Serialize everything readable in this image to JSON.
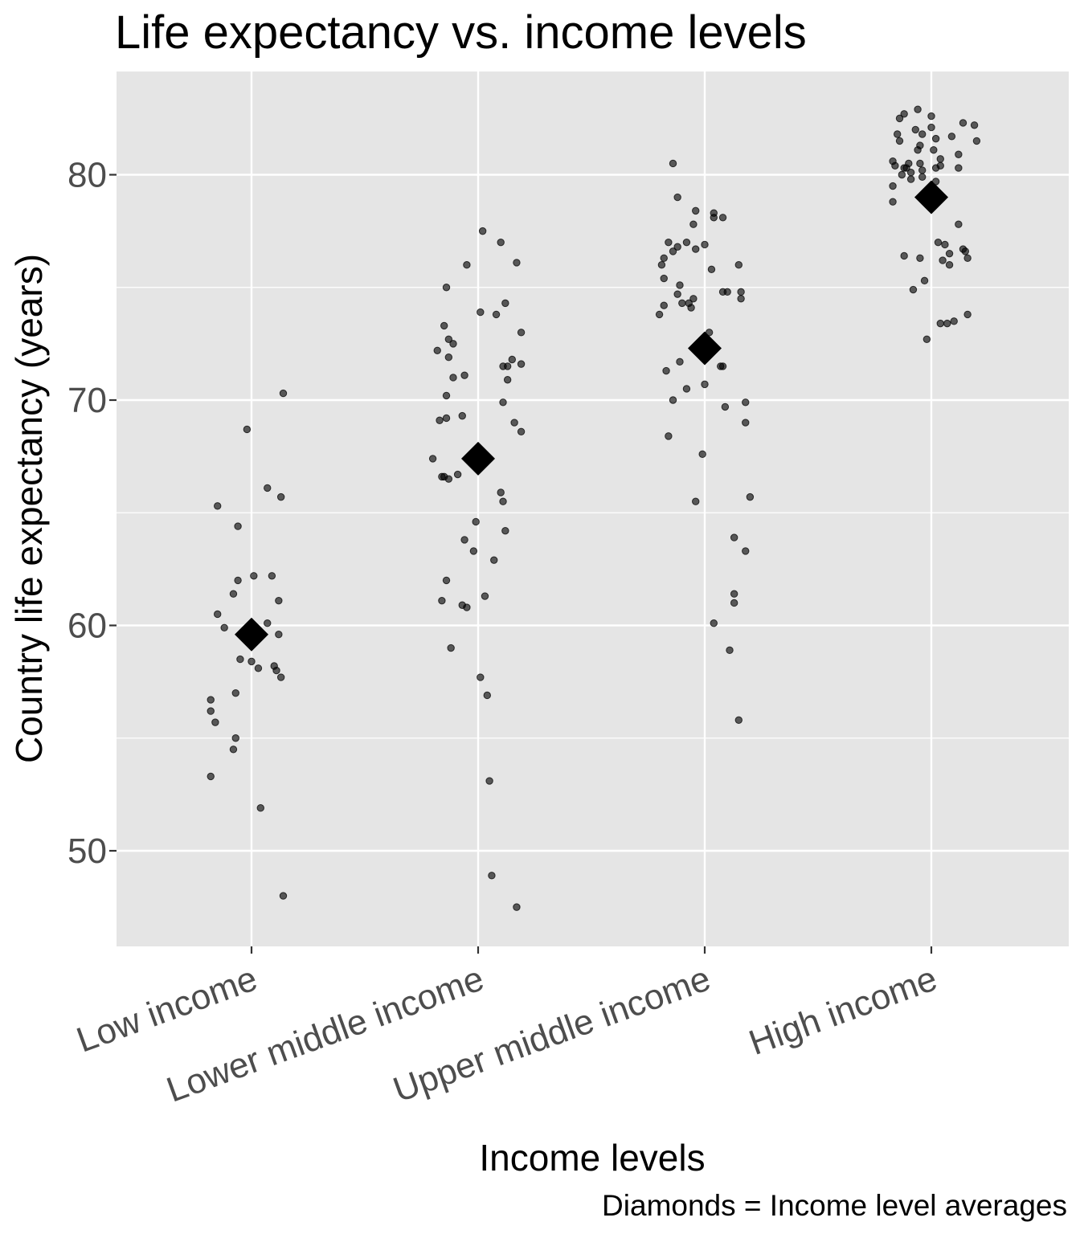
{
  "chart_data": {
    "type": "scatter",
    "title": "Life expectancy vs. income levels",
    "xlabel": "Income levels",
    "ylabel": "Country life expectancy (years)",
    "caption": "Diamonds = Income level averages",
    "categories": [
      "Low income",
      "Lower middle income",
      "Upper middle income",
      "High income"
    ],
    "yticks": [
      50,
      60,
      70,
      80
    ],
    "ylim": [
      45.8,
      84.6
    ],
    "grid": true,
    "background": "#e5e5e5",
    "grid_major_color": "#ffffff",
    "point_color": "#000000",
    "averages": [
      59.6,
      67.4,
      72.3,
      79.0
    ],
    "points": [
      {
        "category": "Low income",
        "jitter": -0.18,
        "y": 53.3
      },
      {
        "category": "Low income",
        "jitter": -0.18,
        "y": 56.7
      },
      {
        "category": "Low income",
        "jitter": -0.18,
        "y": 56.2
      },
      {
        "category": "Low income",
        "jitter": -0.16,
        "y": 55.7
      },
      {
        "category": "Low income",
        "jitter": -0.15,
        "y": 65.3
      },
      {
        "category": "Low income",
        "jitter": -0.15,
        "y": 60.5
      },
      {
        "category": "Low income",
        "jitter": -0.12,
        "y": 59.9
      },
      {
        "category": "Low income",
        "jitter": -0.08,
        "y": 61.4
      },
      {
        "category": "Low income",
        "jitter": -0.07,
        "y": 57.0
      },
      {
        "category": "Low income",
        "jitter": -0.07,
        "y": 55.0
      },
      {
        "category": "Low income",
        "jitter": -0.08,
        "y": 54.5
      },
      {
        "category": "Low income",
        "jitter": -0.06,
        "y": 64.4
      },
      {
        "category": "Low income",
        "jitter": -0.06,
        "y": 62.0
      },
      {
        "category": "Low income",
        "jitter": -0.05,
        "y": 58.5
      },
      {
        "category": "Low income",
        "jitter": -0.02,
        "y": 68.7
      },
      {
        "category": "Low income",
        "jitter": 0.01,
        "y": 62.2
      },
      {
        "category": "Low income",
        "jitter": 0.0,
        "y": 58.4
      },
      {
        "category": "Low income",
        "jitter": 0.03,
        "y": 58.1
      },
      {
        "category": "Low income",
        "jitter": 0.04,
        "y": 51.9
      },
      {
        "category": "Low income",
        "jitter": 0.07,
        "y": 66.1
      },
      {
        "category": "Low income",
        "jitter": 0.07,
        "y": 60.1
      },
      {
        "category": "Low income",
        "jitter": 0.09,
        "y": 62.2
      },
      {
        "category": "Low income",
        "jitter": 0.1,
        "y": 58.2
      },
      {
        "category": "Low income",
        "jitter": 0.11,
        "y": 58.0
      },
      {
        "category": "Low income",
        "jitter": 0.12,
        "y": 61.1
      },
      {
        "category": "Low income",
        "jitter": 0.12,
        "y": 59.6
      },
      {
        "category": "Low income",
        "jitter": 0.13,
        "y": 57.7
      },
      {
        "category": "Low income",
        "jitter": 0.13,
        "y": 65.7
      },
      {
        "category": "Low income",
        "jitter": 0.14,
        "y": 70.3
      },
      {
        "category": "Low income",
        "jitter": 0.14,
        "y": 48.0
      },
      {
        "category": "Lower middle income",
        "jitter": -0.2,
        "y": 67.4
      },
      {
        "category": "Lower middle income",
        "jitter": -0.18,
        "y": 72.2
      },
      {
        "category": "Lower middle income",
        "jitter": -0.17,
        "y": 69.1
      },
      {
        "category": "Lower middle income",
        "jitter": -0.16,
        "y": 66.6
      },
      {
        "category": "Lower middle income",
        "jitter": -0.16,
        "y": 61.1
      },
      {
        "category": "Lower middle income",
        "jitter": -0.15,
        "y": 73.3
      },
      {
        "category": "Lower middle income",
        "jitter": -0.15,
        "y": 66.6
      },
      {
        "category": "Lower middle income",
        "jitter": -0.14,
        "y": 75.0
      },
      {
        "category": "Lower middle income",
        "jitter": -0.14,
        "y": 70.2
      },
      {
        "category": "Lower middle income",
        "jitter": -0.14,
        "y": 69.2
      },
      {
        "category": "Lower middle income",
        "jitter": -0.14,
        "y": 62.0
      },
      {
        "category": "Lower middle income",
        "jitter": -0.13,
        "y": 72.7
      },
      {
        "category": "Lower middle income",
        "jitter": -0.13,
        "y": 71.9
      },
      {
        "category": "Lower middle income",
        "jitter": -0.13,
        "y": 66.5
      },
      {
        "category": "Lower middle income",
        "jitter": -0.12,
        "y": 59.0
      },
      {
        "category": "Lower middle income",
        "jitter": -0.11,
        "y": 72.5
      },
      {
        "category": "Lower middle income",
        "jitter": -0.11,
        "y": 71.0
      },
      {
        "category": "Lower middle income",
        "jitter": -0.09,
        "y": 66.7
      },
      {
        "category": "Lower middle income",
        "jitter": -0.07,
        "y": 69.3
      },
      {
        "category": "Lower middle income",
        "jitter": -0.07,
        "y": 60.9
      },
      {
        "category": "Lower middle income",
        "jitter": -0.06,
        "y": 63.8
      },
      {
        "category": "Lower middle income",
        "jitter": -0.06,
        "y": 71.1
      },
      {
        "category": "Lower middle income",
        "jitter": -0.05,
        "y": 76.0
      },
      {
        "category": "Lower middle income",
        "jitter": -0.05,
        "y": 60.8
      },
      {
        "category": "Lower middle income",
        "jitter": -0.02,
        "y": 63.3
      },
      {
        "category": "Lower middle income",
        "jitter": -0.01,
        "y": 64.6
      },
      {
        "category": "Lower middle income",
        "jitter": 0.01,
        "y": 57.7
      },
      {
        "category": "Lower middle income",
        "jitter": 0.01,
        "y": 73.9
      },
      {
        "category": "Lower middle income",
        "jitter": 0.02,
        "y": 77.5
      },
      {
        "category": "Lower middle income",
        "jitter": 0.03,
        "y": 61.3
      },
      {
        "category": "Lower middle income",
        "jitter": 0.04,
        "y": 56.9
      },
      {
        "category": "Lower middle income",
        "jitter": 0.05,
        "y": 53.1
      },
      {
        "category": "Lower middle income",
        "jitter": 0.06,
        "y": 48.9
      },
      {
        "category": "Lower middle income",
        "jitter": 0.07,
        "y": 62.9
      },
      {
        "category": "Lower middle income",
        "jitter": 0.08,
        "y": 73.8
      },
      {
        "category": "Lower middle income",
        "jitter": 0.1,
        "y": 77.0
      },
      {
        "category": "Lower middle income",
        "jitter": 0.1,
        "y": 65.9
      },
      {
        "category": "Lower middle income",
        "jitter": 0.11,
        "y": 71.5
      },
      {
        "category": "Lower middle income",
        "jitter": 0.11,
        "y": 69.9
      },
      {
        "category": "Lower middle income",
        "jitter": 0.11,
        "y": 65.5
      },
      {
        "category": "Lower middle income",
        "jitter": 0.12,
        "y": 74.3
      },
      {
        "category": "Lower middle income",
        "jitter": 0.12,
        "y": 64.2
      },
      {
        "category": "Lower middle income",
        "jitter": 0.13,
        "y": 71.5
      },
      {
        "category": "Lower middle income",
        "jitter": 0.13,
        "y": 70.9
      },
      {
        "category": "Lower middle income",
        "jitter": 0.15,
        "y": 71.8
      },
      {
        "category": "Lower middle income",
        "jitter": 0.16,
        "y": 69.0
      },
      {
        "category": "Lower middle income",
        "jitter": 0.17,
        "y": 76.1
      },
      {
        "category": "Lower middle income",
        "jitter": 0.17,
        "y": 47.5
      },
      {
        "category": "Lower middle income",
        "jitter": 0.19,
        "y": 73.0
      },
      {
        "category": "Lower middle income",
        "jitter": 0.19,
        "y": 71.6
      },
      {
        "category": "Lower middle income",
        "jitter": 0.19,
        "y": 68.6
      },
      {
        "category": "Upper middle income",
        "jitter": -0.2,
        "y": 73.8
      },
      {
        "category": "Upper middle income",
        "jitter": -0.19,
        "y": 76.0
      },
      {
        "category": "Upper middle income",
        "jitter": -0.18,
        "y": 76.3
      },
      {
        "category": "Upper middle income",
        "jitter": -0.18,
        "y": 75.4
      },
      {
        "category": "Upper middle income",
        "jitter": -0.18,
        "y": 74.2
      },
      {
        "category": "Upper middle income",
        "jitter": -0.17,
        "y": 71.3
      },
      {
        "category": "Upper middle income",
        "jitter": -0.16,
        "y": 68.4
      },
      {
        "category": "Upper middle income",
        "jitter": -0.16,
        "y": 77.0
      },
      {
        "category": "Upper middle income",
        "jitter": -0.14,
        "y": 80.5
      },
      {
        "category": "Upper middle income",
        "jitter": -0.14,
        "y": 76.6
      },
      {
        "category": "Upper middle income",
        "jitter": -0.14,
        "y": 70.0
      },
      {
        "category": "Upper middle income",
        "jitter": -0.12,
        "y": 79.0
      },
      {
        "category": "Upper middle income",
        "jitter": -0.12,
        "y": 76.8
      },
      {
        "category": "Upper middle income",
        "jitter": -0.12,
        "y": 74.7
      },
      {
        "category": "Upper middle income",
        "jitter": -0.11,
        "y": 75.1
      },
      {
        "category": "Upper middle income",
        "jitter": -0.11,
        "y": 71.7
      },
      {
        "category": "Upper middle income",
        "jitter": -0.1,
        "y": 74.3
      },
      {
        "category": "Upper middle income",
        "jitter": -0.08,
        "y": 77.0
      },
      {
        "category": "Upper middle income",
        "jitter": -0.08,
        "y": 70.5
      },
      {
        "category": "Upper middle income",
        "jitter": -0.07,
        "y": 74.3
      },
      {
        "category": "Upper middle income",
        "jitter": -0.06,
        "y": 74.1
      },
      {
        "category": "Upper middle income",
        "jitter": -0.05,
        "y": 77.8
      },
      {
        "category": "Upper middle income",
        "jitter": -0.05,
        "y": 74.5
      },
      {
        "category": "Upper middle income",
        "jitter": -0.04,
        "y": 78.4
      },
      {
        "category": "Upper middle income",
        "jitter": -0.04,
        "y": 76.7
      },
      {
        "category": "Upper middle income",
        "jitter": -0.04,
        "y": 65.5
      },
      {
        "category": "Upper middle income",
        "jitter": -0.01,
        "y": 67.6
      },
      {
        "category": "Upper middle income",
        "jitter": 0.0,
        "y": 76.9
      },
      {
        "category": "Upper middle income",
        "jitter": 0.0,
        "y": 70.7
      },
      {
        "category": "Upper middle income",
        "jitter": 0.02,
        "y": 73.0
      },
      {
        "category": "Upper middle income",
        "jitter": 0.03,
        "y": 75.8
      },
      {
        "category": "Upper middle income",
        "jitter": 0.04,
        "y": 78.3
      },
      {
        "category": "Upper middle income",
        "jitter": 0.04,
        "y": 78.1
      },
      {
        "category": "Upper middle income",
        "jitter": 0.04,
        "y": 60.1
      },
      {
        "category": "Upper middle income",
        "jitter": 0.07,
        "y": 71.5
      },
      {
        "category": "Upper middle income",
        "jitter": 0.08,
        "y": 78.1
      },
      {
        "category": "Upper middle income",
        "jitter": 0.08,
        "y": 74.8
      },
      {
        "category": "Upper middle income",
        "jitter": 0.08,
        "y": 71.5
      },
      {
        "category": "Upper middle income",
        "jitter": 0.09,
        "y": 69.7
      },
      {
        "category": "Upper middle income",
        "jitter": 0.1,
        "y": 74.8
      },
      {
        "category": "Upper middle income",
        "jitter": 0.11,
        "y": 58.9
      },
      {
        "category": "Upper middle income",
        "jitter": 0.13,
        "y": 63.9
      },
      {
        "category": "Upper middle income",
        "jitter": 0.13,
        "y": 61.4
      },
      {
        "category": "Upper middle income",
        "jitter": 0.13,
        "y": 61.0
      },
      {
        "category": "Upper middle income",
        "jitter": 0.15,
        "y": 76.0
      },
      {
        "category": "Upper middle income",
        "jitter": 0.15,
        "y": 55.8
      },
      {
        "category": "Upper middle income",
        "jitter": 0.16,
        "y": 74.8
      },
      {
        "category": "Upper middle income",
        "jitter": 0.16,
        "y": 74.5
      },
      {
        "category": "Upper middle income",
        "jitter": 0.18,
        "y": 69.9
      },
      {
        "category": "Upper middle income",
        "jitter": 0.18,
        "y": 69.0
      },
      {
        "category": "Upper middle income",
        "jitter": 0.18,
        "y": 63.3
      },
      {
        "category": "Upper middle income",
        "jitter": 0.2,
        "y": 65.7
      },
      {
        "category": "High income",
        "jitter": -0.17,
        "y": 80.6
      },
      {
        "category": "High income",
        "jitter": -0.17,
        "y": 79.5
      },
      {
        "category": "High income",
        "jitter": -0.17,
        "y": 78.8
      },
      {
        "category": "High income",
        "jitter": -0.16,
        "y": 80.4
      },
      {
        "category": "High income",
        "jitter": -0.15,
        "y": 81.8
      },
      {
        "category": "High income",
        "jitter": -0.14,
        "y": 82.5
      },
      {
        "category": "High income",
        "jitter": -0.14,
        "y": 81.5
      },
      {
        "category": "High income",
        "jitter": -0.13,
        "y": 80.0
      },
      {
        "category": "High income",
        "jitter": -0.12,
        "y": 82.7
      },
      {
        "category": "High income",
        "jitter": -0.12,
        "y": 80.3
      },
      {
        "category": "High income",
        "jitter": -0.12,
        "y": 76.4
      },
      {
        "category": "High income",
        "jitter": -0.11,
        "y": 80.3
      },
      {
        "category": "High income",
        "jitter": -0.1,
        "y": 80.5
      },
      {
        "category": "High income",
        "jitter": -0.09,
        "y": 80.1
      },
      {
        "category": "High income",
        "jitter": -0.09,
        "y": 79.8
      },
      {
        "category": "High income",
        "jitter": -0.08,
        "y": 74.9
      },
      {
        "category": "High income",
        "jitter": -0.07,
        "y": 82.0
      },
      {
        "category": "High income",
        "jitter": -0.06,
        "y": 82.9
      },
      {
        "category": "High income",
        "jitter": -0.06,
        "y": 81.1
      },
      {
        "category": "High income",
        "jitter": -0.05,
        "y": 81.3
      },
      {
        "category": "High income",
        "jitter": -0.05,
        "y": 80.5
      },
      {
        "category": "High income",
        "jitter": -0.05,
        "y": 76.3
      },
      {
        "category": "High income",
        "jitter": -0.04,
        "y": 81.8
      },
      {
        "category": "High income",
        "jitter": -0.04,
        "y": 80.2
      },
      {
        "category": "High income",
        "jitter": -0.04,
        "y": 79.9
      },
      {
        "category": "High income",
        "jitter": -0.03,
        "y": 75.3
      },
      {
        "category": "High income",
        "jitter": -0.02,
        "y": 72.7
      },
      {
        "category": "High income",
        "jitter": 0.0,
        "y": 82.6
      },
      {
        "category": "High income",
        "jitter": 0.0,
        "y": 82.1
      },
      {
        "category": "High income",
        "jitter": 0.01,
        "y": 81.1
      },
      {
        "category": "High income",
        "jitter": 0.02,
        "y": 80.3
      },
      {
        "category": "High income",
        "jitter": 0.02,
        "y": 79.7
      },
      {
        "category": "High income",
        "jitter": 0.02,
        "y": 81.6
      },
      {
        "category": "High income",
        "jitter": 0.03,
        "y": 77.0
      },
      {
        "category": "High income",
        "jitter": 0.04,
        "y": 80.7
      },
      {
        "category": "High income",
        "jitter": 0.04,
        "y": 80.4
      },
      {
        "category": "High income",
        "jitter": 0.04,
        "y": 73.4
      },
      {
        "category": "High income",
        "jitter": 0.05,
        "y": 76.2
      },
      {
        "category": "High income",
        "jitter": 0.06,
        "y": 76.9
      },
      {
        "category": "High income",
        "jitter": 0.07,
        "y": 73.4
      },
      {
        "category": "High income",
        "jitter": 0.08,
        "y": 76.5
      },
      {
        "category": "High income",
        "jitter": 0.08,
        "y": 76.0
      },
      {
        "category": "High income",
        "jitter": 0.09,
        "y": 81.7
      },
      {
        "category": "High income",
        "jitter": 0.1,
        "y": 73.5
      },
      {
        "category": "High income",
        "jitter": 0.12,
        "y": 80.9
      },
      {
        "category": "High income",
        "jitter": 0.12,
        "y": 80.3
      },
      {
        "category": "High income",
        "jitter": 0.12,
        "y": 77.8
      },
      {
        "category": "High income",
        "jitter": 0.14,
        "y": 82.3
      },
      {
        "category": "High income",
        "jitter": 0.14,
        "y": 76.7
      },
      {
        "category": "High income",
        "jitter": 0.15,
        "y": 76.6
      },
      {
        "category": "High income",
        "jitter": 0.16,
        "y": 73.8
      },
      {
        "category": "High income",
        "jitter": 0.16,
        "y": 76.3
      },
      {
        "category": "High income",
        "jitter": 0.19,
        "y": 82.2
      },
      {
        "category": "High income",
        "jitter": 0.2,
        "y": 81.5
      }
    ]
  }
}
